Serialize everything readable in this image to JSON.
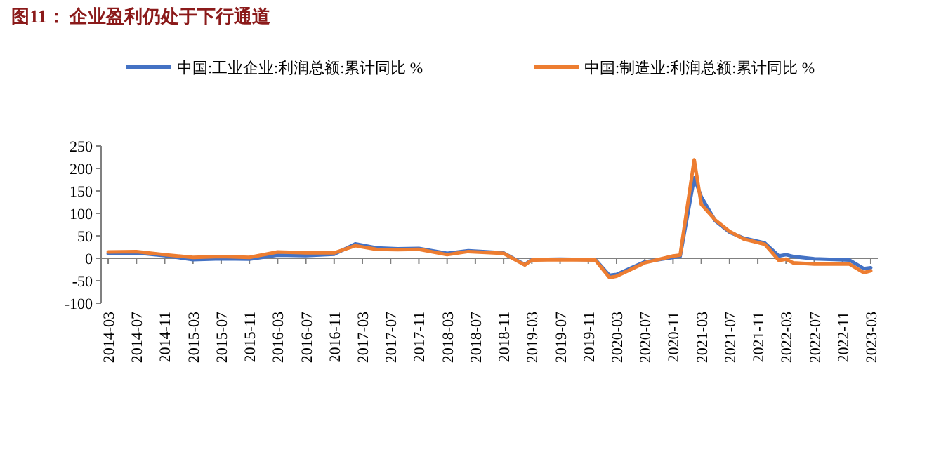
{
  "chart_data": {
    "type": "line",
    "title": "图11：  企业盈利仍处于下行通道",
    "x": [
      "2014-03",
      "2014-07",
      "2014-11",
      "2015-03",
      "2015-07",
      "2015-11",
      "2016-03",
      "2016-07",
      "2016-11",
      "2017-02",
      "2017-05",
      "2017-08",
      "2017-11",
      "2018-03",
      "2018-06",
      "2018-11",
      "2019-02",
      "2019-03",
      "2019-07",
      "2019-12",
      "2020-02",
      "2020-03",
      "2020-07",
      "2020-11",
      "2020-12",
      "2021-02",
      "2021-03",
      "2021-05",
      "2021-07",
      "2021-09",
      "2021-12",
      "2022-02",
      "2022-03",
      "2022-04",
      "2022-07",
      "2022-12",
      "2023-02",
      "2023-03"
    ],
    "series": [
      {
        "name": "中国:工业企业:利润总额:累计同比 %",
        "color": "#4472c4",
        "values": [
          10,
          12,
          6,
          -3,
          -1,
          -2,
          7,
          6,
          9,
          32,
          23,
          21,
          22,
          11,
          17,
          12,
          -14,
          -3,
          -2,
          -3,
          -38,
          -36,
          -8,
          2,
          4,
          179,
          137,
          83,
          58,
          45,
          34,
          5,
          8,
          4,
          -1,
          -4,
          -23,
          -21
        ]
      },
      {
        "name": "中国:制造业:利润总额:累计同比 %",
        "color": "#ed7d31",
        "values": [
          14,
          15,
          8,
          2,
          4,
          2,
          14,
          12,
          12,
          28,
          20,
          19,
          20,
          8,
          15,
          11,
          -15,
          -4,
          -3,
          -4,
          -43,
          -40,
          -10,
          5,
          7,
          219,
          120,
          85,
          60,
          43,
          31,
          -5,
          -2,
          -10,
          -13,
          -13,
          -32,
          -28
        ]
      }
    ],
    "xlim": [
      "2014-02",
      "2023-04"
    ],
    "xticks": [
      "2014-03",
      "2014-07",
      "2014-11",
      "2015-03",
      "2015-07",
      "2015-11",
      "2016-03",
      "2016-07",
      "2016-11",
      "2017-03",
      "2017-07",
      "2017-11",
      "2018-03",
      "2018-07",
      "2018-11",
      "2019-03",
      "2019-07",
      "2019-11",
      "2020-03",
      "2020-07",
      "2020-11",
      "2021-03",
      "2021-07",
      "2021-11",
      "2022-03",
      "2022-07",
      "2022-11",
      "2023-03"
    ],
    "ylim": [
      -100,
      250
    ],
    "yticks": [
      -100,
      -50,
      0,
      50,
      100,
      150,
      200,
      250
    ],
    "legend": "top"
  }
}
